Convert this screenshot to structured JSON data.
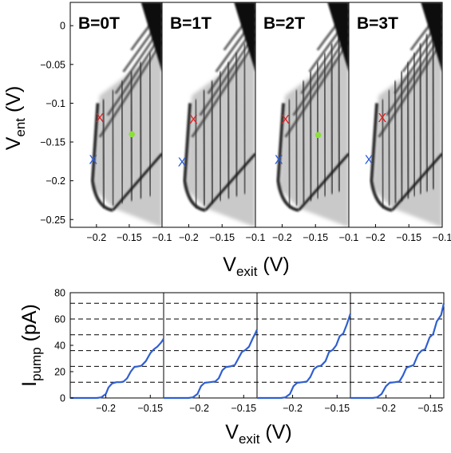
{
  "chart_data": [
    {
      "type": "heatmap",
      "description_axes": {
        "xlabel_main": "V",
        "xlabel_sub": "exit",
        "xlabel_unit": " (V)",
        "ylabel_main": "V",
        "ylabel_sub": "ent",
        "ylabel_unit": " (V)"
      },
      "xlim": [
        -0.24,
        -0.1
      ],
      "ylim": [
        -0.26,
        0.03
      ],
      "x_ticks": [
        -0.2,
        -0.15,
        -0.1
      ],
      "x_tick_labels": [
        "−0.2",
        "−0.15",
        "−0.1"
      ],
      "y_ticks": [
        0,
        -0.05,
        -0.1,
        -0.15,
        -0.2,
        -0.25
      ],
      "y_tick_labels": [
        "0",
        "−0.05",
        "−0.1",
        "−0.15",
        "−0.2",
        "−0.25"
      ],
      "panels": [
        {
          "label": "B=0T",
          "plateau_lines": 6,
          "markers": [
            {
              "symbol": "X",
              "color": "#e02020",
              "x": -0.195,
              "y": -0.118
            },
            {
              "symbol": "X",
              "color": "#2a5bd7",
              "x": -0.205,
              "y": -0.172
            },
            {
              "symbol": "dot",
              "color": "#8be03a",
              "x": -0.146,
              "y": -0.14
            }
          ]
        },
        {
          "label": "B=1T",
          "plateau_lines": 7,
          "markers": [
            {
              "symbol": "X",
              "color": "#e02020",
              "x": -0.193,
              "y": -0.12
            },
            {
              "symbol": "X",
              "color": "#2a5bd7",
              "x": -0.21,
              "y": -0.175
            }
          ]
        },
        {
          "label": "B=2T",
          "plateau_lines": 8,
          "markers": [
            {
              "symbol": "X",
              "color": "#e02020",
              "x": -0.195,
              "y": -0.12
            },
            {
              "symbol": "X",
              "color": "#2a5bd7",
              "x": -0.205,
              "y": -0.172
            },
            {
              "symbol": "dot",
              "color": "#8be03a",
              "x": -0.146,
              "y": -0.141
            }
          ]
        },
        {
          "label": "B=3T",
          "plateau_lines": 9,
          "markers": [
            {
              "symbol": "X",
              "color": "#e02020",
              "x": -0.19,
              "y": -0.118
            },
            {
              "symbol": "X",
              "color": "#2a5bd7",
              "x": -0.21,
              "y": -0.172
            }
          ]
        }
      ]
    },
    {
      "type": "line",
      "description_axes": {
        "xlabel_main": "V",
        "xlabel_sub": "exit",
        "xlabel_unit": " (V)",
        "ylabel_main": "I",
        "ylabel_sub": "pump",
        "ylabel_unit": " (pA)"
      },
      "xlim": [
        -0.24,
        -0.135
      ],
      "ylim": [
        0,
        80
      ],
      "x_ticks": [
        -0.2,
        -0.15
      ],
      "x_tick_labels": [
        "−0.2",
        "−0.15"
      ],
      "y_ticks": [
        0,
        20,
        40,
        60,
        80
      ],
      "y_tick_labels": [
        "0",
        "20",
        "40",
        "60",
        "80"
      ],
      "dashed_levels": [
        12,
        24,
        36,
        48,
        60,
        72
      ],
      "line_color": "#2f5fd0",
      "series": [
        {
          "panel": "B=0T",
          "x": [
            -0.24,
            -0.21,
            -0.205,
            -0.2,
            -0.197,
            -0.193,
            -0.188,
            -0.183,
            -0.18,
            -0.176,
            -0.172,
            -0.168,
            -0.164,
            -0.16,
            -0.155,
            -0.15,
            -0.146,
            -0.142,
            -0.138,
            -0.135
          ],
          "y": [
            0,
            0,
            0.5,
            3,
            8,
            11,
            12,
            12,
            12.5,
            15,
            20,
            23.5,
            24,
            24.5,
            28,
            34,
            37,
            39,
            42,
            45
          ]
        },
        {
          "panel": "B=1T",
          "x": [
            -0.24,
            -0.212,
            -0.207,
            -0.202,
            -0.198,
            -0.194,
            -0.188,
            -0.182,
            -0.178,
            -0.174,
            -0.17,
            -0.165,
            -0.16,
            -0.156,
            -0.152,
            -0.148,
            -0.144,
            -0.14,
            -0.137,
            -0.135
          ],
          "y": [
            0,
            0,
            0.5,
            3,
            9,
            11.5,
            12,
            12.5,
            15,
            21,
            23.5,
            24,
            25,
            30,
            35,
            36.5,
            39,
            45,
            49,
            52
          ]
        },
        {
          "panel": "B=2T",
          "x": [
            -0.24,
            -0.213,
            -0.208,
            -0.203,
            -0.199,
            -0.195,
            -0.189,
            -0.184,
            -0.18,
            -0.176,
            -0.172,
            -0.168,
            -0.163,
            -0.159,
            -0.155,
            -0.151,
            -0.147,
            -0.143,
            -0.139,
            -0.135
          ],
          "y": [
            0,
            0,
            0.5,
            3,
            9,
            11.5,
            12,
            12.5,
            16,
            22,
            24,
            24.5,
            28,
            35,
            36.5,
            40,
            47,
            49,
            56,
            64
          ]
        },
        {
          "panel": "B=3T",
          "x": [
            -0.24,
            -0.215,
            -0.21,
            -0.205,
            -0.2,
            -0.196,
            -0.19,
            -0.185,
            -0.181,
            -0.177,
            -0.173,
            -0.169,
            -0.164,
            -0.16,
            -0.156,
            -0.151,
            -0.147,
            -0.143,
            -0.138,
            -0.135
          ],
          "y": [
            0,
            0,
            0.5,
            3,
            9,
            11.5,
            12,
            12.5,
            17,
            23,
            24,
            25,
            33,
            36,
            37,
            46,
            48.5,
            58,
            63,
            72
          ]
        }
      ]
    }
  ]
}
